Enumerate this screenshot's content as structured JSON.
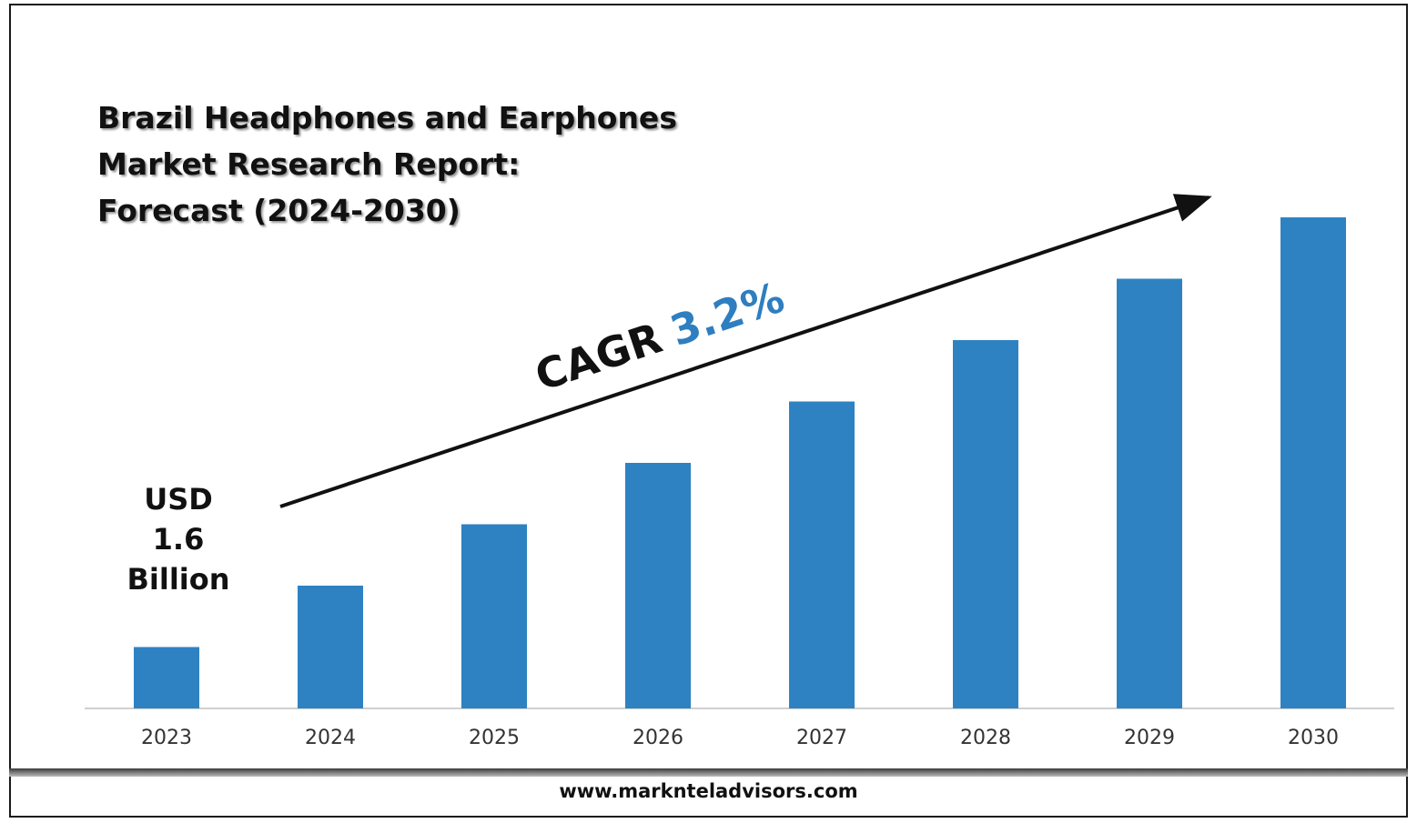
{
  "title_lines": [
    "Brazil Headphones and Earphones",
    "Market Research Report:",
    "Forecast (2024-2030)"
  ],
  "annotation": {
    "cagr_label": "CAGR",
    "cagr_value": "3.2%",
    "start_value_lines": [
      "USD",
      "1.6",
      "Billion"
    ]
  },
  "footer": "www.marknteladvisors.com",
  "colors": {
    "bar": "#2e82c2",
    "cagr_value": "#2e7ec0",
    "text": "#111111",
    "axis": "#d0d0d0"
  },
  "chart_data": {
    "type": "bar",
    "categories": [
      "2023",
      "2024",
      "2025",
      "2026",
      "2027",
      "2028",
      "2029",
      "2030"
    ],
    "values": [
      1,
      2,
      3,
      4,
      5,
      6,
      7,
      8
    ],
    "xlabel": "",
    "ylabel": "",
    "ylim": [
      0,
      9
    ],
    "grid": false,
    "legend": "none"
  }
}
